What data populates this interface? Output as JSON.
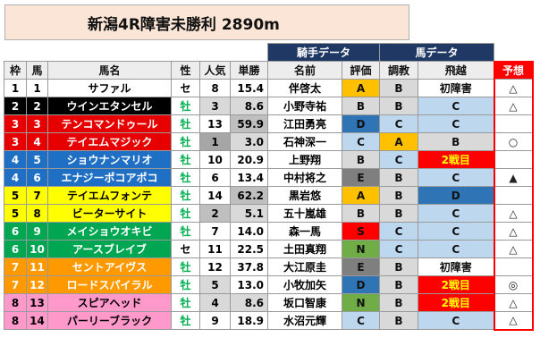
{
  "title": "新潟4R障害未勝利 2890m",
  "groups": {
    "jockey": "騎手データ",
    "horse": "馬データ"
  },
  "headers": {
    "waku": "枠",
    "uma": "馬",
    "name": "馬名",
    "sex": "性",
    "ninki": "人気",
    "tansho": "単勝",
    "jockey": "名前",
    "rating": "評価",
    "chokyo": "調教",
    "jump": "飛越",
    "yoso": "予想"
  },
  "colors": {
    "w1": "#ffffff",
    "w2": "#000000",
    "w3": "#e60000",
    "w4": "#1f6fc5",
    "w5": "#ffff00",
    "w6": "#00a651",
    "w7": "#ff9900",
    "w8": "#ff99cc",
    "rank_bg": [
      "#ffffff",
      "#d9d9d9",
      "#bfbfbf",
      "#a6a6a6"
    ],
    "odds_bg": [
      "#ffffff",
      "#d9d9d9",
      "#bfbfbf"
    ],
    "grade_A": "#ffc000",
    "grade_B": "#d9d9d9",
    "grade_C": "#bdd7ee",
    "grade_D": "#2f75b5",
    "grade_E": "#7f7f7f",
    "grade_N": "#70ad47",
    "grade_S": "#ff0000",
    "male": "#00b050",
    "gelding": "#000000",
    "debut": "#ff0000"
  },
  "rows": [
    {
      "waku": "1",
      "uma": "1",
      "name": "サファル",
      "sex": "セ",
      "ninki": "8",
      "tansho": "15.4",
      "jockey": "伴啓太",
      "rating": "A",
      "chokyo": "B",
      "jump": "初障害",
      "yoso": "△"
    },
    {
      "waku": "2",
      "uma": "2",
      "name": "ウインエタンセル",
      "sex": "牡",
      "ninki": "3",
      "tansho": "8.6",
      "jockey": "小野寺祐",
      "rating": "B",
      "chokyo": "B",
      "jump": "C",
      "yoso": "△"
    },
    {
      "waku": "3",
      "uma": "3",
      "name": "テンコマンドゥール",
      "sex": "牡",
      "ninki": "13",
      "tansho": "59.9",
      "jockey": "江田勇亮",
      "rating": "D",
      "chokyo": "C",
      "jump": "C",
      "yoso": ""
    },
    {
      "waku": "3",
      "uma": "4",
      "name": "テイエムマジック",
      "sex": "牡",
      "ninki": "1",
      "tansho": "3.0",
      "jockey": "石神深一",
      "rating": "C",
      "chokyo": "A",
      "jump": "B",
      "yoso": "○"
    },
    {
      "waku": "4",
      "uma": "5",
      "name": "ショウナンマリオ",
      "sex": "牡",
      "ninki": "10",
      "tansho": "20.9",
      "jockey": "上野翔",
      "rating": "B",
      "chokyo": "C",
      "jump": "2戦目",
      "yoso": ""
    },
    {
      "waku": "4",
      "uma": "6",
      "name": "エナジーポコアポコ",
      "sex": "牡",
      "ninki": "6",
      "tansho": "13.4",
      "jockey": "中村将之",
      "rating": "E",
      "chokyo": "B",
      "jump": "C",
      "yoso": "▲"
    },
    {
      "waku": "5",
      "uma": "7",
      "name": "テイエムフォンテ",
      "sex": "牡",
      "ninki": "14",
      "tansho": "62.2",
      "jockey": "黒岩悠",
      "rating": "A",
      "chokyo": "B",
      "jump": "D",
      "yoso": ""
    },
    {
      "waku": "5",
      "uma": "8",
      "name": "ビーターサイト",
      "sex": "牡",
      "ninki": "2",
      "tansho": "5.1",
      "jockey": "五十嵐雄",
      "rating": "B",
      "chokyo": "B",
      "jump": "C",
      "yoso": "△"
    },
    {
      "waku": "6",
      "uma": "9",
      "name": "メイショウオキビ",
      "sex": "牡",
      "ninki": "7",
      "tansho": "14.0",
      "jockey": "森一馬",
      "rating": "S",
      "chokyo": "C",
      "jump": "C",
      "yoso": "△"
    },
    {
      "waku": "6",
      "uma": "10",
      "name": "アースブレイブ",
      "sex": "セ",
      "ninki": "11",
      "tansho": "22.5",
      "jockey": "土田真翔",
      "rating": "N",
      "chokyo": "C",
      "jump": "C",
      "yoso": "△"
    },
    {
      "waku": "7",
      "uma": "11",
      "name": "セントアイヴス",
      "sex": "牡",
      "ninki": "12",
      "tansho": "37.8",
      "jockey": "大江原圭",
      "rating": "E",
      "chokyo": "B",
      "jump": "初障害",
      "yoso": ""
    },
    {
      "waku": "7",
      "uma": "12",
      "name": "ロードスパイラル",
      "sex": "牡",
      "ninki": "5",
      "tansho": "13.0",
      "jockey": "小牧加矢",
      "rating": "D",
      "chokyo": "B",
      "jump": "2戦目",
      "yoso": "◎"
    },
    {
      "waku": "8",
      "uma": "13",
      "name": "スピアヘッド",
      "sex": "牡",
      "ninki": "4",
      "tansho": "8.6",
      "jockey": "坂口智康",
      "rating": "N",
      "chokyo": "B",
      "jump": "2戦目",
      "yoso": "△"
    },
    {
      "waku": "8",
      "uma": "14",
      "name": "パーリーブラック",
      "sex": "牡",
      "ninki": "9",
      "tansho": "18.9",
      "jockey": "水沼元輝",
      "rating": "C",
      "chokyo": "B",
      "jump": "C",
      "yoso": "△"
    }
  ]
}
